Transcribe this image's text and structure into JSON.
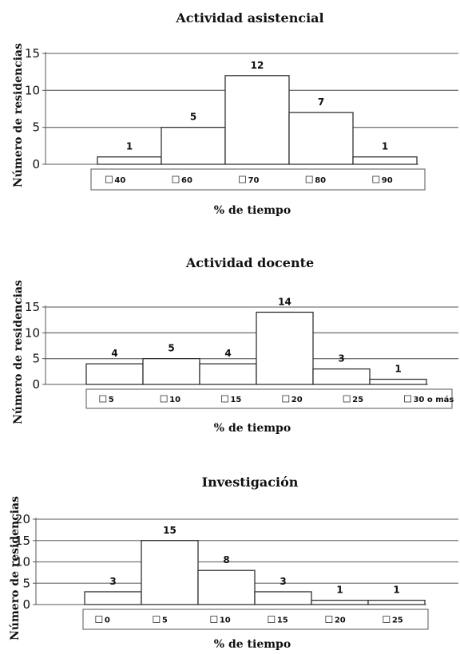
{
  "chart_data": [
    {
      "type": "bar",
      "title": "Actividad asistencial",
      "xlabel": "% de tiempo",
      "ylabel": "Número de residencias",
      "categories": [
        "40",
        "60",
        "70",
        "80",
        "90"
      ],
      "values": [
        1,
        5,
        12,
        7,
        1
      ],
      "ylim": [
        0,
        15
      ],
      "yticks": [
        0,
        5,
        10,
        15
      ],
      "grid": true,
      "legend": "bottom"
    },
    {
      "type": "bar",
      "title": "Actividad docente",
      "xlabel": "% de tiempo",
      "ylabel": "Número de residencias",
      "categories": [
        "5",
        "10",
        "15",
        "20",
        "25",
        "30 o más"
      ],
      "values": [
        4,
        5,
        4,
        14,
        3,
        1
      ],
      "ylim": [
        0,
        15
      ],
      "yticks": [
        0,
        5,
        10,
        15
      ],
      "grid": true,
      "legend": "bottom"
    },
    {
      "type": "bar",
      "title": "Investigación",
      "xlabel": "% de tiempo",
      "ylabel": "Número de residencias",
      "categories": [
        "0",
        "5",
        "10",
        "15",
        "20",
        "25"
      ],
      "values": [
        3,
        15,
        8,
        3,
        1,
        1
      ],
      "ylim": [
        0,
        20
      ],
      "yticks": [
        0,
        5,
        10,
        15,
        20
      ],
      "grid": true,
      "legend": "bottom"
    }
  ]
}
